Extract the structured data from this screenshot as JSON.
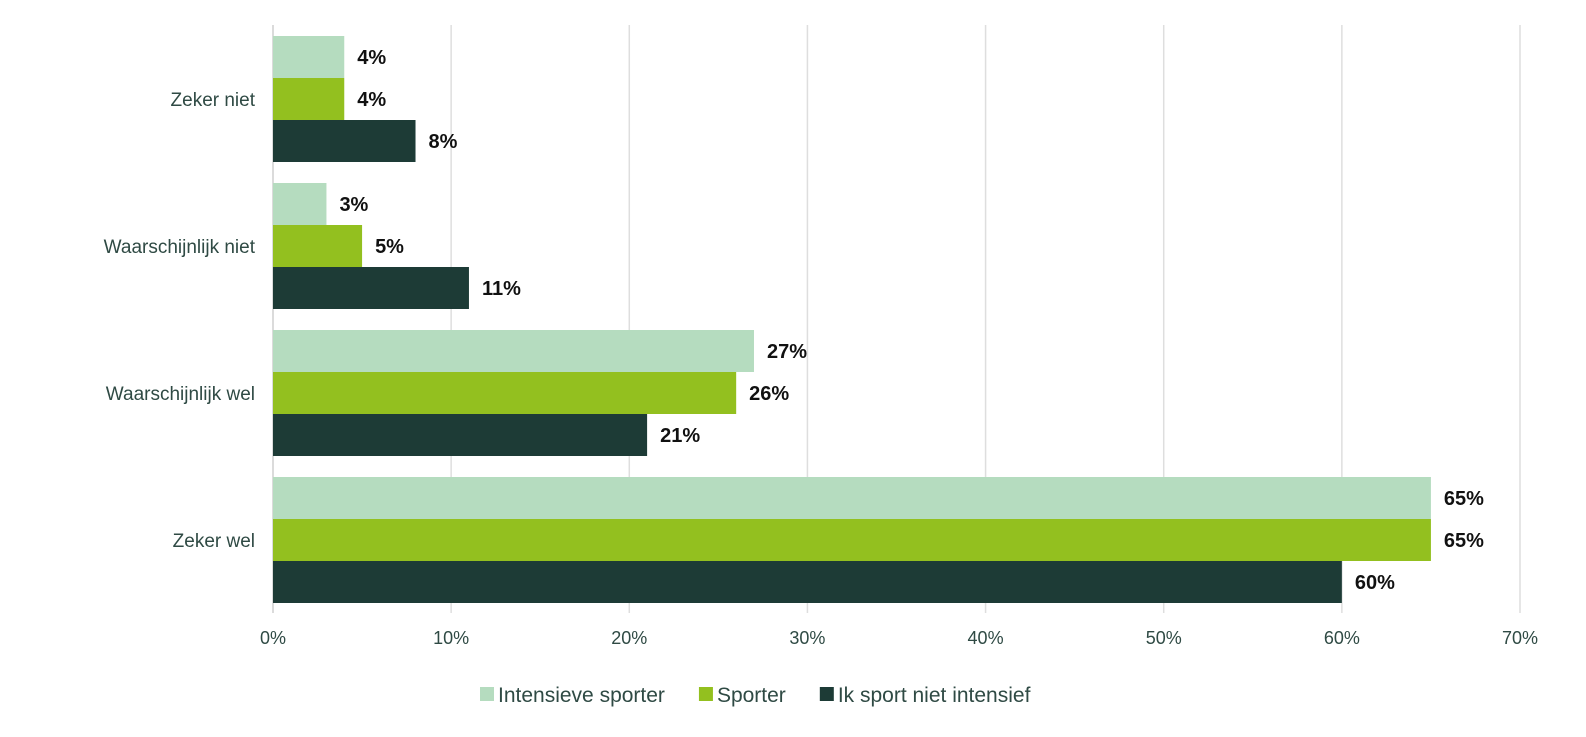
{
  "chart_data": {
    "type": "bar",
    "orientation": "horizontal",
    "categories": [
      "Zeker niet",
      "Waarschijnlijk niet",
      "Waarschijnlijk wel",
      "Zeker wel"
    ],
    "series": [
      {
        "name": "Intensieve sporter",
        "color": "#b5dcbf",
        "values": [
          4,
          3,
          27,
          65
        ],
        "labels": [
          "4%",
          "3%",
          "27%",
          "65%"
        ]
      },
      {
        "name": "Sporter",
        "color": "#93c01f",
        "values": [
          4,
          5,
          26,
          65
        ],
        "labels": [
          "4%",
          "5%",
          "26%",
          "65%"
        ]
      },
      {
        "name": "Ik sport niet intensief",
        "color": "#1d3b36",
        "values": [
          8,
          11,
          21,
          60
        ],
        "labels": [
          "8%",
          "11%",
          "21%",
          "60%"
        ]
      }
    ],
    "xlim": [
      0,
      70
    ],
    "xticks": [
      0,
      10,
      20,
      30,
      40,
      50,
      60,
      70
    ],
    "xtick_labels": [
      "0%",
      "10%",
      "20%",
      "30%",
      "40%",
      "50%",
      "60%",
      "70%"
    ],
    "grid": true,
    "legend_position": "bottom"
  }
}
